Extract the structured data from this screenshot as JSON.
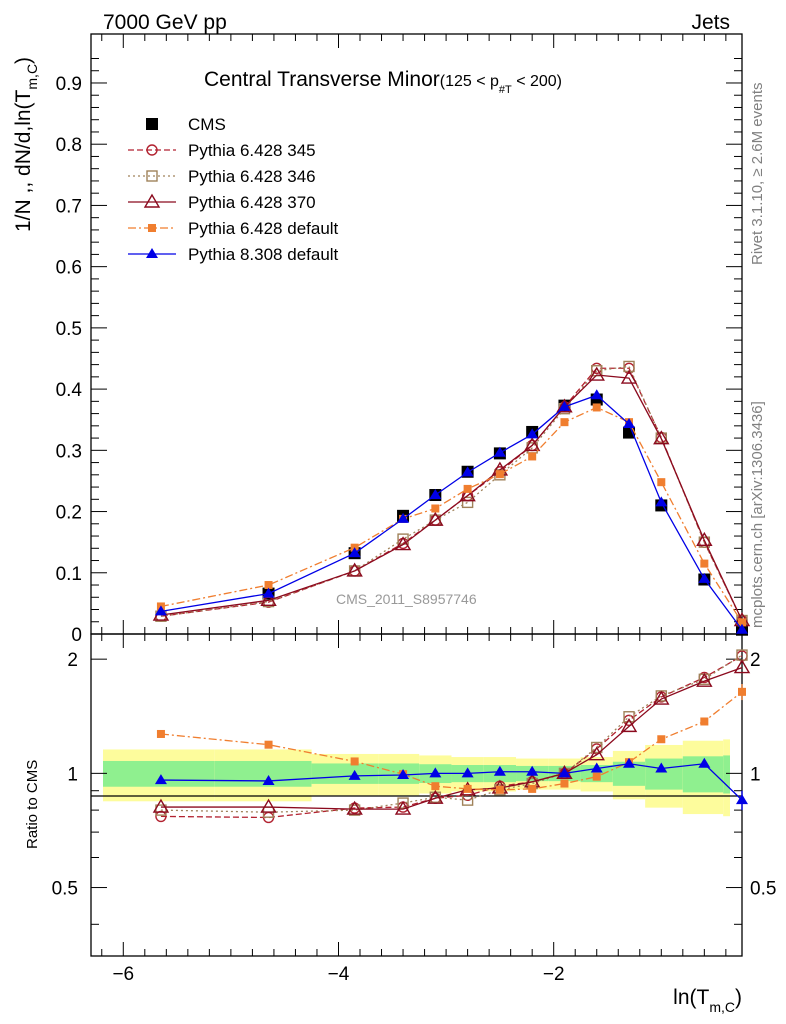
{
  "header": {
    "left": "7000 GeV pp",
    "right": "Jets"
  },
  "side_text": {
    "top": "Rivet 3.1.10, ≥ 2.6M events",
    "bottom": "mcplots.cern.ch [arXiv:1306.3436]"
  },
  "watermark": "CMS_2011_S8957746",
  "chart_data": [
    {
      "type": "line",
      "title": {
        "main": "Central Transverse Minor",
        "range_open": "(125 < p",
        "range_sub": "#T",
        "range_close": "  < 200)"
      },
      "ylabel": {
        "main": "1/N ,, dN/d,ln(T",
        "sub": "m,C",
        "close": ")"
      },
      "xlabel": {
        "main": "ln(T",
        "sub": "m,C",
        "close": ")"
      },
      "xlim": [
        -6.3,
        -0.25
      ],
      "ylim": [
        0,
        0.98
      ],
      "y_ticks": [
        "0",
        "0.1",
        "0.2",
        "0.3",
        "0.4",
        "0.5",
        "0.6",
        "0.7",
        "0.8",
        "0.9"
      ],
      "legend_position": "top-left",
      "x": [
        -5.65,
        -4.65,
        -3.85,
        -3.4,
        -3.1,
        -2.8,
        -2.5,
        -2.2,
        -1.9,
        -1.6,
        -1.3,
        -1.0,
        -0.6,
        -0.25
      ],
      "series": [
        {
          "name": "CMS",
          "color": "#000000",
          "marker": "square-filled",
          "line": "none",
          "values": [
            null,
            0.066,
            0.132,
            0.193,
            0.227,
            0.265,
            0.295,
            0.33,
            0.373,
            0.383,
            0.329,
            0.21,
            0.089,
            0.007
          ]
        },
        {
          "name": "Pythia 6.428 345",
          "color": "#b22230",
          "marker": "circle-open",
          "line": "dashed",
          "values": [
            0.029,
            0.052,
            0.103,
            0.148,
            0.186,
            0.226,
            0.265,
            0.308,
            0.371,
            0.434,
            0.434,
            0.321,
            0.15,
            0.022
          ]
        },
        {
          "name": "Pythia 6.428 346",
          "color": "#a0825a",
          "marker": "square-open",
          "line": "dotted",
          "values": [
            0.029,
            0.053,
            0.103,
            0.155,
            0.186,
            0.215,
            0.26,
            0.304,
            0.368,
            0.43,
            0.437,
            0.32,
            0.15,
            0.022
          ]
        },
        {
          "name": "Pythia 6.428 370",
          "color": "#8b0a1e",
          "marker": "triangle-open",
          "line": "solid",
          "values": [
            0.031,
            0.055,
            0.103,
            0.146,
            0.186,
            0.226,
            0.268,
            0.308,
            0.371,
            0.423,
            0.418,
            0.319,
            0.153,
            0.022
          ]
        },
        {
          "name": "Pythia 6.428 default",
          "color": "#f07e2f",
          "marker": "square-filled-small",
          "line": "dashdot",
          "values": [
            0.045,
            0.08,
            0.141,
            0.188,
            0.205,
            0.237,
            0.261,
            0.29,
            0.346,
            0.37,
            0.346,
            0.248,
            0.115,
            0.019
          ]
        },
        {
          "name": "Pythia 8.308 default",
          "color": "#0000e6",
          "marker": "triangle-filled",
          "line": "solid",
          "values": [
            0.037,
            0.066,
            0.132,
            0.188,
            0.227,
            0.264,
            0.296,
            0.326,
            0.371,
            0.39,
            0.343,
            0.215,
            0.09,
            0.007
          ]
        }
      ]
    },
    {
      "type": "line",
      "ylabel": "Ratio to CMS",
      "xlim": [
        -6.3,
        -0.25
      ],
      "ylim": [
        0.33,
        2.33
      ],
      "y_ticks": [
        "0.5",
        "1",
        "2"
      ],
      "x_ticks": [
        "−6",
        "−4",
        "−2"
      ],
      "x": [
        -5.65,
        -4.65,
        -3.85,
        -3.4,
        -3.1,
        -2.8,
        -2.5,
        -2.2,
        -1.9,
        -1.6,
        -1.3,
        -1.0,
        -0.6,
        -0.25
      ],
      "uncertainty_band_colors": {
        "inner": "#8ff08f",
        "outer": "#fdfc9c"
      },
      "band_inner": [
        0.078,
        0.078,
        0.062,
        0.062,
        0.057,
        0.052,
        0.052,
        0.046,
        0.046,
        0.052,
        0.073,
        0.094,
        0.109,
        0.115
      ],
      "band_outer": [
        0.156,
        0.156,
        0.125,
        0.125,
        0.115,
        0.104,
        0.104,
        0.094,
        0.094,
        0.104,
        0.146,
        0.188,
        0.219,
        0.229
      ],
      "series": [
        {
          "name": "Pythia 6.428 345",
          "color": "#b22230",
          "marker": "circle-open",
          "line": "dashed",
          "values": [
            0.77,
            0.765,
            0.81,
            0.815,
            0.86,
            0.875,
            0.925,
            0.95,
            1.0,
            1.16,
            1.38,
            1.59,
            1.79,
            2.04
          ]
        },
        {
          "name": "Pythia 6.428 346",
          "color": "#a0825a",
          "marker": "square-open",
          "line": "dotted",
          "values": [
            0.8,
            0.79,
            0.8,
            0.835,
            0.865,
            0.85,
            0.905,
            0.94,
            1.0,
            1.17,
            1.41,
            1.6,
            1.77,
            2.05
          ]
        },
        {
          "name": "Pythia 6.428 370",
          "color": "#8b0a1e",
          "marker": "triangle-open",
          "line": "solid",
          "values": [
            0.815,
            0.815,
            0.805,
            0.805,
            0.86,
            0.905,
            0.915,
            0.95,
            1.0,
            1.12,
            1.33,
            1.57,
            1.75,
            1.9
          ]
        },
        {
          "name": "Pythia 6.428 default",
          "color": "#f07e2f",
          "marker": "square-filled-small",
          "line": "dashdot",
          "values": [
            1.27,
            1.19,
            1.075,
            0.995,
            0.925,
            0.91,
            0.905,
            0.91,
            0.94,
            0.98,
            1.07,
            1.23,
            1.37,
            1.64
          ]
        },
        {
          "name": "Pythia 8.308 default",
          "color": "#0000e6",
          "marker": "triangle-filled",
          "line": "solid",
          "values": [
            0.96,
            0.955,
            0.985,
            0.99,
            1.0,
            1.0,
            1.01,
            1.01,
            1.0,
            1.03,
            1.06,
            1.03,
            1.06,
            0.85
          ]
        }
      ]
    }
  ]
}
